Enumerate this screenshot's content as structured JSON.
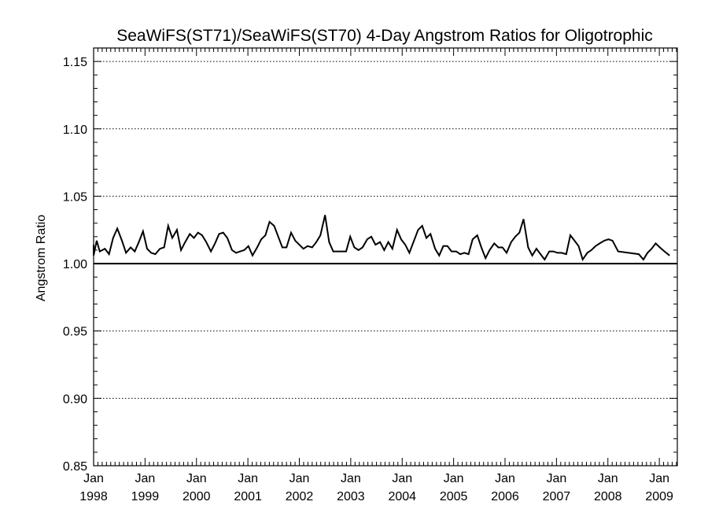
{
  "chart_data": {
    "type": "line",
    "title": "SeaWiFS(ST71)/SeaWiFS(ST70) 4-Day Angstrom Ratios for Oligotrophic",
    "xlabel": "",
    "ylabel": "Angstrom Ratio",
    "xlim": [
      1998.0,
      2009.35
    ],
    "ylim": [
      0.85,
      1.16
    ],
    "yticks": [
      0.85,
      0.9,
      0.95,
      1.0,
      1.05,
      1.1,
      1.15
    ],
    "ytick_labels": [
      "0.85",
      "0.90",
      "0.95",
      "1.00",
      "1.05",
      "1.10",
      "1.15"
    ],
    "xticks": [
      {
        "year": 1998,
        "month": "Jan",
        "label": "1998"
      },
      {
        "year": 1999,
        "month": "Jan",
        "label": "1999"
      },
      {
        "year": 2000,
        "month": "Jan",
        "label": "2000"
      },
      {
        "year": 2001,
        "month": "Jan",
        "label": "2001"
      },
      {
        "year": 2002,
        "month": "Jan",
        "label": "2002"
      },
      {
        "year": 2003,
        "month": "Jan",
        "label": "2003"
      },
      {
        "year": 2004,
        "month": "Jan",
        "label": "2004"
      },
      {
        "year": 2005,
        "month": "Jan",
        "label": "2005"
      },
      {
        "year": 2006,
        "month": "Jan",
        "label": "2006"
      },
      {
        "year": 2007,
        "month": "Jan",
        "label": "2007"
      },
      {
        "year": 2008,
        "month": "Jan",
        "label": "2008"
      },
      {
        "year": 2009,
        "month": "Jan",
        "label": "2009"
      }
    ],
    "grid": "dotted horizontal at major ticks",
    "reference_line": 1.0,
    "series": [
      {
        "color": "#000000",
        "points": [
          [
            1997.92,
            1.014
          ],
          [
            1998.0,
            1.006
          ],
          [
            1998.06,
            1.017
          ],
          [
            1998.12,
            1.009
          ],
          [
            1998.22,
            1.011
          ],
          [
            1998.3,
            1.007
          ],
          [
            1998.38,
            1.019
          ],
          [
            1998.46,
            1.026
          ],
          [
            1998.55,
            1.017
          ],
          [
            1998.63,
            1.008
          ],
          [
            1998.72,
            1.012
          ],
          [
            1998.8,
            1.009
          ],
          [
            1998.88,
            1.016
          ],
          [
            1998.96,
            1.024
          ],
          [
            1999.04,
            1.011
          ],
          [
            1999.12,
            1.008
          ],
          [
            1999.2,
            1.007
          ],
          [
            1999.29,
            1.011
          ],
          [
            1999.37,
            1.012
          ],
          [
            1999.45,
            1.028
          ],
          [
            1999.53,
            1.019
          ],
          [
            1999.62,
            1.025
          ],
          [
            1999.7,
            1.01
          ],
          [
            1999.78,
            1.016
          ],
          [
            1999.87,
            1.022
          ],
          [
            1999.95,
            1.019
          ],
          [
            2000.03,
            1.023
          ],
          [
            2000.11,
            1.021
          ],
          [
            2000.19,
            1.016
          ],
          [
            2000.28,
            1.009
          ],
          [
            2000.36,
            1.015
          ],
          [
            2000.44,
            1.022
          ],
          [
            2000.52,
            1.023
          ],
          [
            2000.6,
            1.019
          ],
          [
            2000.69,
            1.01
          ],
          [
            2000.77,
            1.008
          ],
          [
            2000.85,
            1.009
          ],
          [
            2000.93,
            1.01
          ],
          [
            2001.01,
            1.013
          ],
          [
            2001.09,
            1.006
          ],
          [
            2001.18,
            1.012
          ],
          [
            2001.26,
            1.018
          ],
          [
            2001.34,
            1.021
          ],
          [
            2001.42,
            1.031
          ],
          [
            2001.51,
            1.028
          ],
          [
            2001.59,
            1.02
          ],
          [
            2001.67,
            1.012
          ],
          [
            2001.75,
            1.012
          ],
          [
            2001.84,
            1.023
          ],
          [
            2001.92,
            1.017
          ],
          [
            2002.0,
            1.014
          ],
          [
            2002.08,
            1.011
          ],
          [
            2002.16,
            1.013
          ],
          [
            2002.25,
            1.012
          ],
          [
            2002.33,
            1.016
          ],
          [
            2002.41,
            1.021
          ],
          [
            2002.5,
            1.036
          ],
          [
            2002.58,
            1.016
          ],
          [
            2002.66,
            1.009
          ],
          [
            2002.74,
            1.009
          ],
          [
            2002.82,
            1.009
          ],
          [
            2002.91,
            1.009
          ],
          [
            2002.99,
            1.02
          ],
          [
            2003.07,
            1.012
          ],
          [
            2003.15,
            1.01
          ],
          [
            2003.23,
            1.012
          ],
          [
            2003.32,
            1.018
          ],
          [
            2003.4,
            1.02
          ],
          [
            2003.48,
            1.014
          ],
          [
            2003.57,
            1.016
          ],
          [
            2003.65,
            1.01
          ],
          [
            2003.73,
            1.016
          ],
          [
            2003.81,
            1.011
          ],
          [
            2003.9,
            1.025
          ],
          [
            2003.98,
            1.018
          ],
          [
            2004.06,
            1.014
          ],
          [
            2004.14,
            1.008
          ],
          [
            2004.22,
            1.016
          ],
          [
            2004.31,
            1.025
          ],
          [
            2004.39,
            1.028
          ],
          [
            2004.47,
            1.019
          ],
          [
            2004.55,
            1.022
          ],
          [
            2004.64,
            1.011
          ],
          [
            2004.72,
            1.006
          ],
          [
            2004.8,
            1.013
          ],
          [
            2004.88,
            1.013
          ],
          [
            2004.96,
            1.009
          ],
          [
            2005.05,
            1.009
          ],
          [
            2005.13,
            1.007
          ],
          [
            2005.21,
            1.008
          ],
          [
            2005.29,
            1.007
          ],
          [
            2005.37,
            1.018
          ],
          [
            2005.46,
            1.021
          ],
          [
            2005.54,
            1.012
          ],
          [
            2005.62,
            1.004
          ],
          [
            2005.7,
            1.01
          ],
          [
            2005.79,
            1.015
          ],
          [
            2005.87,
            1.012
          ],
          [
            2005.95,
            1.012
          ],
          [
            2006.03,
            1.008
          ],
          [
            2006.12,
            1.016
          ],
          [
            2006.2,
            1.02
          ],
          [
            2006.28,
            1.023
          ],
          [
            2006.36,
            1.033
          ],
          [
            2006.45,
            1.012
          ],
          [
            2006.53,
            1.006
          ],
          [
            2006.61,
            1.011
          ],
          [
            2006.69,
            1.007
          ],
          [
            2006.77,
            1.003
          ],
          [
            2006.86,
            1.009
          ],
          [
            2006.94,
            1.009
          ],
          [
            2007.02,
            1.008
          ],
          [
            2007.1,
            1.008
          ],
          [
            2007.19,
            1.007
          ],
          [
            2007.27,
            1.021
          ],
          [
            2007.35,
            1.017
          ],
          [
            2007.43,
            1.013
          ],
          [
            2007.51,
            1.003
          ],
          [
            2007.6,
            1.008
          ],
          [
            2007.68,
            1.01
          ],
          [
            2007.76,
            1.013
          ],
          [
            2007.84,
            1.015
          ],
          [
            2007.93,
            1.017
          ],
          [
            2008.01,
            1.018
          ],
          [
            2008.09,
            1.017
          ],
          [
            2008.2,
            1.009
          ],
          [
            2008.6,
            1.007
          ],
          [
            2008.69,
            1.003
          ],
          [
            2008.77,
            1.008
          ],
          [
            2008.85,
            1.011
          ],
          [
            2008.93,
            1.015
          ],
          [
            2009.01,
            1.012
          ],
          [
            2009.1,
            1.009
          ],
          [
            2009.2,
            1.006
          ]
        ]
      }
    ]
  }
}
